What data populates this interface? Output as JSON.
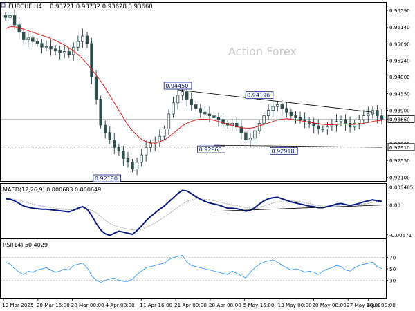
{
  "header": {
    "symbol_timeframe": "EURCHF,H4",
    "ohlc": "0.93721 0.93732 0.93628 0.93660"
  },
  "watermark": "Action Forex",
  "colors": {
    "candle": "#2f4f4f",
    "ma": "#e02020",
    "macd_line": "#0a1a80",
    "macd_signal": "#aaaaaa",
    "rsi": "#1e90ff",
    "trendline": "#000000",
    "label_border": "#0a1a80",
    "label_text": "#0a1a80",
    "watermark": "#c8c8c8"
  },
  "chart_data": [
    {
      "type": "line",
      "panel": "price",
      "title": "EURCHF,H4",
      "ylim": [
        0.9205,
        0.9672
      ],
      "y_ticks": [
        "0.96590",
        "0.96140",
        "0.95690",
        "0.95240",
        "0.94800",
        "0.94350",
        "0.93900",
        "0.93660",
        "0.93000",
        "0.92910",
        "0.92550",
        "0.92100"
      ],
      "x_ticks": [
        "13 Mar 2025",
        "20 Mar 16:00",
        "28 Mar 00:00",
        "4 Apr 08:00",
        "11 Apr 16:00",
        "21 Apr 00:00",
        "28 Apr 08:00",
        "5 May 16:00",
        "13 May 00:00",
        "20 May 08:00",
        "27 May 16:00",
        "4 Jun 00:00"
      ],
      "series": [
        {
          "name": "close",
          "values": [
            0.964,
            0.9645,
            0.962,
            0.96,
            0.958,
            0.9585,
            0.9575,
            0.957,
            0.956,
            0.9562,
            0.9555,
            0.955,
            0.9545,
            0.9548,
            0.954,
            0.956,
            0.9575,
            0.959,
            0.957,
            0.948,
            0.942,
            0.935,
            0.933,
            0.931,
            0.929,
            0.928,
            0.926,
            0.925,
            0.9232,
            0.925,
            0.927,
            0.929,
            0.93,
            0.9305,
            0.932,
            0.934,
            0.938,
            0.941,
            0.943,
            0.944,
            0.942,
            0.9405,
            0.9395,
            0.9385,
            0.938,
            0.9375,
            0.937,
            0.9365,
            0.9355,
            0.935,
            0.9355,
            0.9345,
            0.933,
            0.931,
            0.9315,
            0.9335,
            0.9355,
            0.9375,
            0.939,
            0.94,
            0.9405,
            0.9395,
            0.9385,
            0.9375,
            0.937,
            0.9365,
            0.936,
            0.9355,
            0.9348,
            0.934,
            0.934,
            0.9345,
            0.935,
            0.936,
            0.9365,
            0.9355,
            0.9345,
            0.9355,
            0.9365,
            0.9375,
            0.938,
            0.939,
            0.9375,
            0.9366
          ]
        },
        {
          "name": "moving average",
          "values": [
            0.961,
            0.9615,
            0.9615,
            0.9612,
            0.9608,
            0.9604,
            0.96,
            0.9596,
            0.9592,
            0.9588,
            0.9583,
            0.9578,
            0.9572,
            0.9566,
            0.9558,
            0.955,
            0.954,
            0.9528,
            0.9515,
            0.95,
            0.9485,
            0.9468,
            0.945,
            0.943,
            0.941,
            0.939,
            0.937,
            0.935,
            0.9335,
            0.9322,
            0.9312,
            0.9305,
            0.9302,
            0.9302,
            0.9305,
            0.931,
            0.9318,
            0.9328,
            0.9338,
            0.9348,
            0.9355,
            0.936,
            0.9364,
            0.9366,
            0.9366,
            0.9365,
            0.9363,
            0.936,
            0.9356,
            0.9352,
            0.9349,
            0.9346,
            0.9343,
            0.9342,
            0.9342,
            0.9344,
            0.9348,
            0.9352,
            0.9356,
            0.936,
            0.9364,
            0.9366,
            0.9367,
            0.9366,
            0.9364,
            0.9362,
            0.936,
            0.9358,
            0.9356,
            0.9354,
            0.9352,
            0.9351,
            0.9351,
            0.9352,
            0.9353,
            0.9353,
            0.9352,
            0.9352,
            0.9353,
            0.9355,
            0.9357,
            0.936,
            0.9362,
            0.9362
          ]
        }
      ],
      "reference_lines": [
        {
          "label": "0.93660",
          "value": 0.9366,
          "style": "solid",
          "color": "#b0b0b0"
        },
        {
          "label": "0.92910",
          "value": 0.9291,
          "style": "dashed",
          "color": "#555555"
        }
      ],
      "trendlines": [
        {
          "from": [
            38,
            0.9445
          ],
          "to": [
            81,
            0.9385
          ]
        },
        {
          "from": [
            46,
            0.9296
          ],
          "to": [
            83,
            0.92905
          ]
        }
      ],
      "annotations": [
        {
          "label": "0.94450",
          "x": 38,
          "value": 0.9445
        },
        {
          "label": "0.94196",
          "x": 56,
          "value": 0.94196
        },
        {
          "label": "0.92960",
          "x": 46,
          "value": 0.9296
        },
        {
          "label": "0.92918",
          "x": 62,
          "value": 0.92918
        },
        {
          "label": "0.92180",
          "x": 23,
          "value": 0.9218
        }
      ]
    },
    {
      "type": "line",
      "panel": "macd",
      "title": "MACD(12,26,9) 0.000683 0.000649",
      "ylim": [
        -0.006,
        0.0038
      ],
      "y_ticks": [
        "0.003485",
        "0.00",
        "-0.00571"
      ],
      "series": [
        {
          "name": "MACD",
          "values": [
            0.0012,
            0.0011,
            0.0008,
            0.0003,
            -0.0002,
            -0.0004,
            -0.0006,
            -0.0007,
            -0.0008,
            -0.0008,
            -0.0009,
            -0.001,
            -0.0011,
            -0.0012,
            -0.0013,
            -0.001,
            -0.0006,
            -0.0003,
            -0.0008,
            -0.002,
            -0.0035,
            -0.0048,
            -0.0055,
            -0.0058,
            -0.0054,
            -0.005,
            -0.0052,
            -0.0054,
            -0.0056,
            -0.0049,
            -0.004,
            -0.003,
            -0.0022,
            -0.0015,
            -0.0008,
            -0.0002,
            0.0006,
            0.0014,
            0.0022,
            0.0028,
            0.0027,
            0.0022,
            0.0016,
            0.0011,
            0.0007,
            0.0004,
            0.0002,
            0.0,
            -0.0003,
            -0.0006,
            -0.0006,
            -0.0007,
            -0.0009,
            -0.0012,
            -0.001,
            -0.0005,
            0.0002,
            0.0008,
            0.0012,
            0.0014,
            0.0015,
            0.0012,
            0.0009,
            0.0006,
            0.0004,
            0.0002,
            0.0,
            -0.0002,
            -0.0003,
            -0.0005,
            -0.0005,
            -0.0003,
            -0.0001,
            0.0002,
            0.0003,
            0.0001,
            -0.0001,
            0.0001,
            0.0003,
            0.0006,
            0.0008,
            0.001,
            0.0008,
            0.0007
          ]
        },
        {
          "name": "Signal",
          "values": [
            0.0013,
            0.0012,
            0.0011,
            0.0009,
            0.0006,
            0.0004,
            0.0002,
            0.0,
            -0.0002,
            -0.0003,
            -0.0004,
            -0.0006,
            -0.0007,
            -0.0008,
            -0.0009,
            -0.0009,
            -0.0009,
            -0.0008,
            -0.0008,
            -0.001,
            -0.0015,
            -0.0022,
            -0.0029,
            -0.0035,
            -0.0039,
            -0.0042,
            -0.0044,
            -0.0046,
            -0.0048,
            -0.0048,
            -0.0047,
            -0.0043,
            -0.0039,
            -0.0034,
            -0.0029,
            -0.0023,
            -0.0017,
            -0.0011,
            -0.0004,
            0.0002,
            0.0007,
            0.001,
            0.0012,
            0.0012,
            0.0011,
            0.001,
            0.0008,
            0.0006,
            0.0004,
            0.0002,
            0.0,
            -0.0001,
            -0.0003,
            -0.0005,
            -0.0006,
            -0.0006,
            -0.0004,
            -0.0002,
            0.0001,
            0.0004,
            0.0006,
            0.0007,
            0.0008,
            0.0008,
            0.0007,
            0.0006,
            0.0004,
            0.0003,
            0.0001,
            -0.0001,
            -0.0002,
            -0.0002,
            -0.0002,
            -0.0001,
            0.0,
            0.0,
            0.0,
            0.0,
            0.0001,
            0.0002,
            0.0003,
            0.0005,
            0.0006,
            0.0006
          ]
        }
      ],
      "trendlines": [
        {
          "from": [
            46,
            -0.0012
          ],
          "to": [
            83,
            0.0
          ]
        }
      ]
    },
    {
      "type": "line",
      "panel": "rsi",
      "title": "RSI(14) 50.4029",
      "ylim": [
        0,
        100
      ],
      "y_ticks": [
        "70",
        "50",
        "30"
      ],
      "reference_levels": [
        70,
        30
      ],
      "series": [
        {
          "name": "RSI(14)",
          "values": [
            62,
            58,
            50,
            44,
            40,
            46,
            44,
            48,
            50,
            52,
            48,
            44,
            46,
            50,
            48,
            56,
            58,
            60,
            52,
            38,
            30,
            26,
            30,
            32,
            34,
            30,
            28,
            28,
            32,
            40,
            46,
            52,
            54,
            56,
            58,
            60,
            66,
            70,
            72,
            74,
            62,
            56,
            54,
            52,
            50,
            48,
            46,
            44,
            42,
            40,
            46,
            42,
            38,
            34,
            44,
            52,
            58,
            62,
            64,
            66,
            62,
            56,
            52,
            48,
            50,
            48,
            44,
            46,
            44,
            40,
            46,
            50,
            52,
            56,
            54,
            48,
            46,
            52,
            56,
            58,
            60,
            62,
            54,
            50.4
          ]
        }
      ]
    }
  ]
}
